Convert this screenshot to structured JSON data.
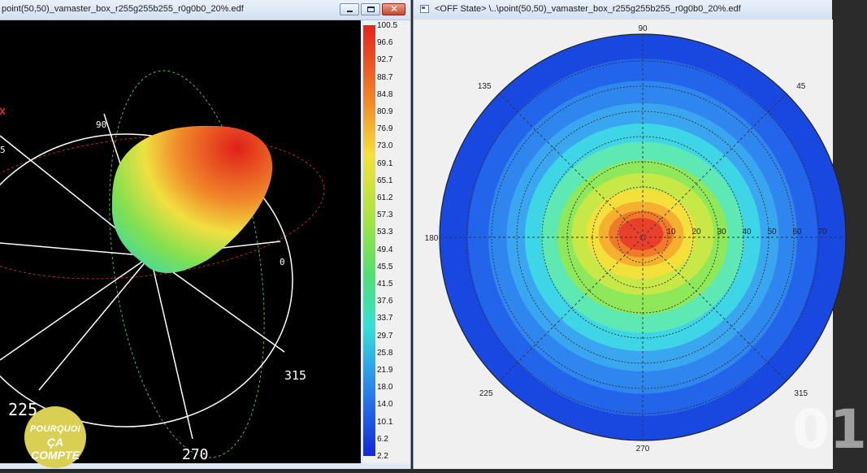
{
  "left_window": {
    "title": "point(50,50)_vamaster_box_r255g255b255_r0g0b0_20%.edf",
    "controls": {
      "minimize_icon": "minimize-icon",
      "maximize_icon": "maximize-icon",
      "close_icon": "close-icon",
      "close_label": "✕"
    },
    "plot3d": {
      "azimuth_labels": [
        "90",
        "0",
        "315",
        "270",
        "225",
        "5"
      ],
      "colors": {
        "ring": "#ffffff",
        "dash_green": "#58b848",
        "dash_red": "#c0281c"
      }
    },
    "colorbar": {
      "values": [
        "100.5",
        "96.6",
        "92.7",
        "88.7",
        "84.8",
        "80.9",
        "76.9",
        "73.0",
        "69.1",
        "65.1",
        "61.2",
        "57.3",
        "53.3",
        "49.4",
        "45.5",
        "41.5",
        "37.6",
        "33.7",
        "29.7",
        "25.8",
        "21.9",
        "18.0",
        "14.0",
        "10.1",
        "6.2",
        "2.2"
      ],
      "min": 2.2,
      "max": 100.5
    }
  },
  "right_window": {
    "title": "<OFF State> \\..\\point(50,50)_vamaster_box_r255g255b255_r0g0b0_20%.edf",
    "icon": "document-icon",
    "polar": {
      "angle_labels": {
        "top": "90",
        "bottom": "270",
        "left": "180",
        "upper_left": "135",
        "upper_right": "45",
        "lower_left": "225",
        "lower_right": "315"
      },
      "radius_labels": [
        "10",
        "20",
        "30",
        "40",
        "50",
        "60",
        "70"
      ]
    }
  },
  "overlay": {
    "badge_top": "POURQUOI",
    "badge_bottom": "ÇA COMPTE",
    "watermark": "01"
  },
  "colors": {
    "high": "#e8402a",
    "mid": "#8fe04a",
    "low": "#1c5fe6"
  }
}
